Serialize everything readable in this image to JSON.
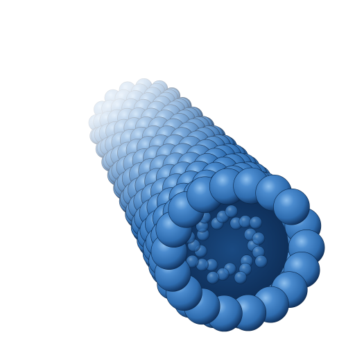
{
  "scene": {
    "subject": "nanotube-spacefill-model",
    "colors": {
      "background": "#ffffff",
      "atom_base": "#2f6db0",
      "atom_highlight": "#8fc0ee",
      "atom_shadow": "#0f2f5a",
      "fog": "#ffffff"
    }
  }
}
